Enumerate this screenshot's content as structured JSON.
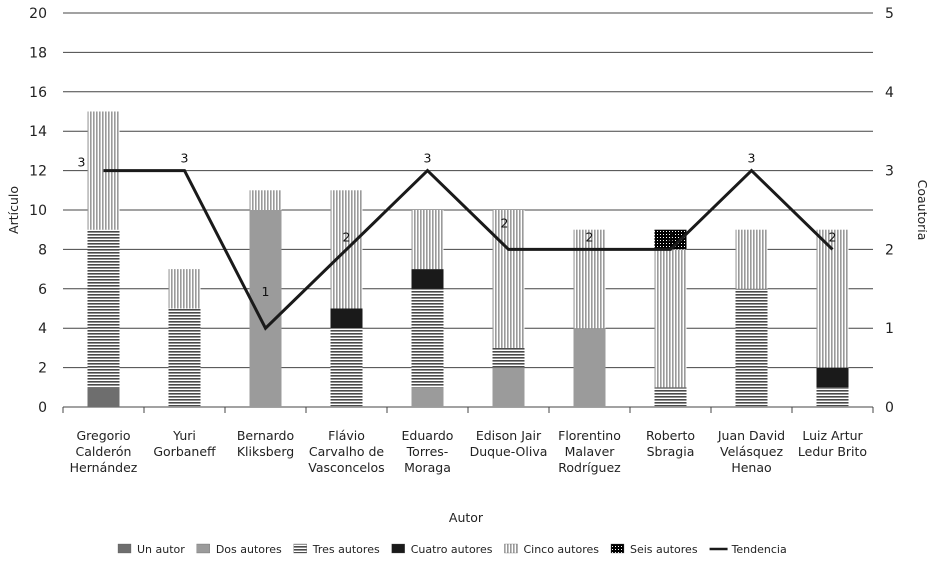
{
  "chart_data": {
    "type": "bar",
    "stacked": true,
    "xlabel": "Autor",
    "ylabel": "Artículo",
    "y2label": "Coautoría",
    "ylim": [
      0,
      20
    ],
    "y2lim": [
      0,
      5
    ],
    "yticks": [
      0,
      2,
      4,
      6,
      8,
      10,
      12,
      14,
      16,
      18,
      20
    ],
    "y2ticks": [
      0,
      1,
      2,
      3,
      4,
      5
    ],
    "grid": true,
    "legend_position": "bottom",
    "categories": [
      [
        "Gregorio",
        "Calderón",
        "Hernández"
      ],
      [
        "Yuri",
        "Gorbaneff"
      ],
      [
        "Bernardo",
        "Kliksberg"
      ],
      [
        "Flávio",
        "Carvalho de",
        "Vasconcelos"
      ],
      [
        "Eduardo",
        "Torres-",
        "Moraga"
      ],
      [
        "Edison Jair",
        "Duque-Oliva"
      ],
      [
        "Florentino",
        "Malaver",
        "Rodríguez"
      ],
      [
        "Roberto",
        "Sbragia"
      ],
      [
        "Juan David",
        "Velásquez",
        "Henao"
      ],
      [
        "Luiz Artur",
        "Ledur Brito"
      ]
    ],
    "series": [
      {
        "name": "Un autor",
        "values": [
          1,
          0,
          0,
          0,
          0,
          0,
          0,
          0,
          0,
          0
        ]
      },
      {
        "name": "Dos autores",
        "values": [
          0,
          0,
          10,
          0,
          1,
          2,
          4,
          0,
          0,
          0
        ]
      },
      {
        "name": "Tres autores",
        "values": [
          8,
          5,
          0,
          4,
          5,
          1,
          0,
          1,
          6,
          1
        ]
      },
      {
        "name": "Cuatro autores",
        "values": [
          0,
          0,
          0,
          1,
          1,
          0,
          0,
          0,
          0,
          1
        ]
      },
      {
        "name": "Cinco autores",
        "values": [
          6,
          2,
          1,
          6,
          3,
          7,
          5,
          7,
          3,
          7
        ]
      },
      {
        "name": "Seis autores",
        "values": [
          0,
          0,
          0,
          0,
          0,
          0,
          0,
          1,
          0,
          0
        ]
      }
    ],
    "trend": {
      "name": "Tendencia",
      "axis": "right",
      "values": [
        3,
        3,
        1,
        2,
        3,
        2,
        2,
        2,
        3,
        2
      ]
    },
    "colors": {
      "Un autor": "#6e6e6e",
      "Dos autores": "#9b9b9b",
      "Tres autores": "#555555",
      "Cuatro autores": "#1a1a1a",
      "Cinco autores": "#9a9a9a",
      "Seis autores": "#111111",
      "Tendencia": "#1a1a1a"
    }
  }
}
